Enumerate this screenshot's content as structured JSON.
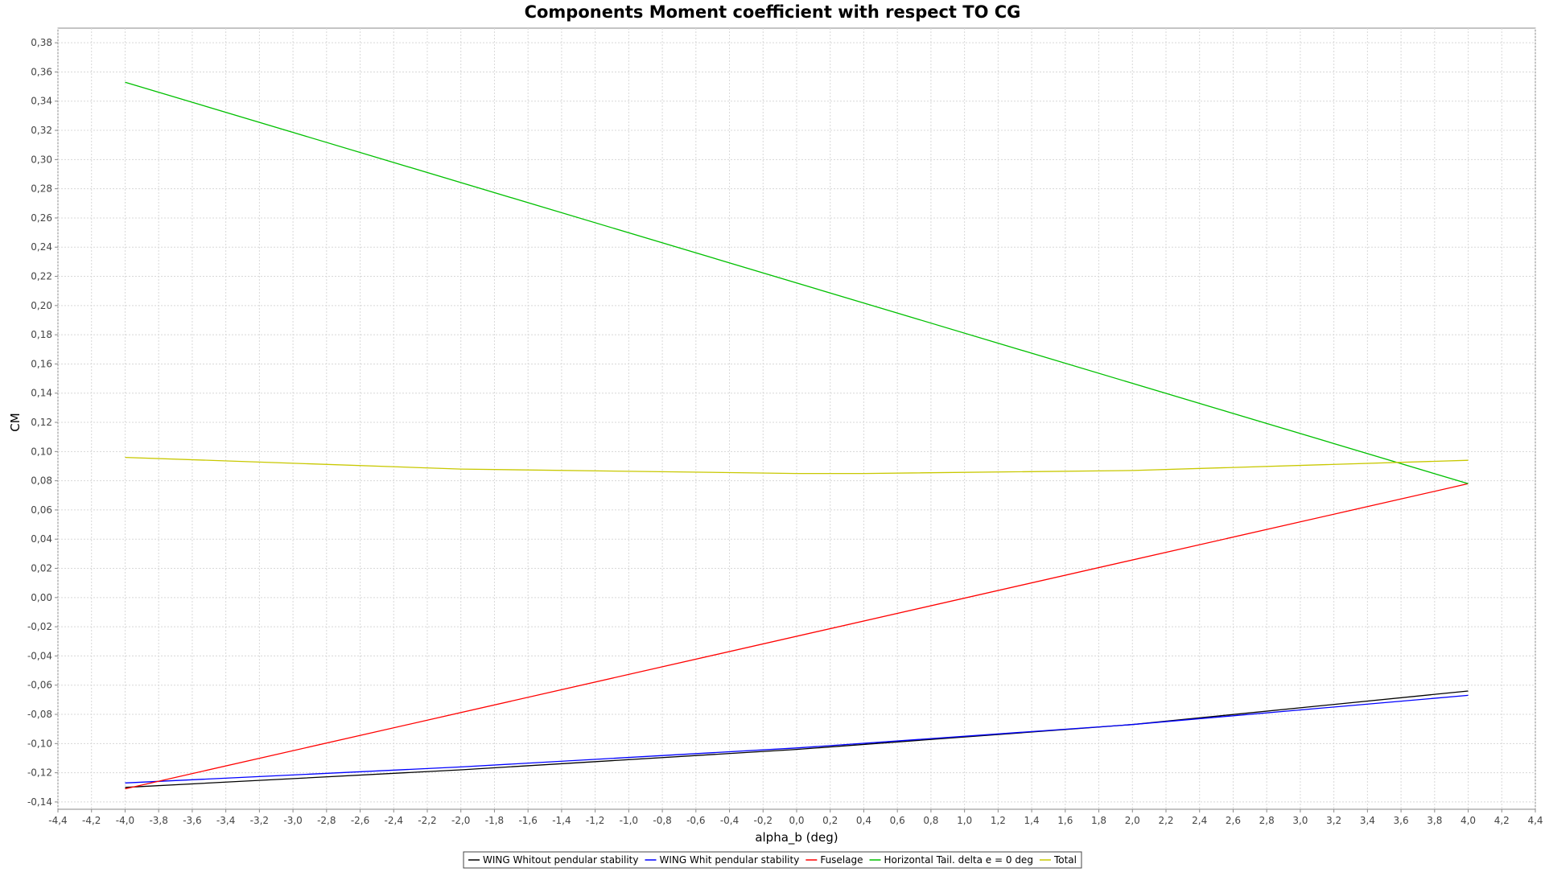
{
  "chart_data": {
    "type": "line",
    "title": "Components Moment coefficient with respect TO CG",
    "xlabel": "alpha_b (deg)",
    "ylabel": "CM",
    "xlim": [
      -4.4,
      4.4
    ],
    "ylim": [
      -0.145,
      0.39
    ],
    "x_tick_labels": [
      "-4,4",
      "-4,2",
      "-4,0",
      "-3,8",
      "-3,6",
      "-3,4",
      "-3,2",
      "-3,0",
      "-2,8",
      "-2,6",
      "-2,4",
      "-2,2",
      "-2,0",
      "-1,8",
      "-1,6",
      "-1,4",
      "-1,2",
      "-1,0",
      "-0,8",
      "-0,6",
      "-0,4",
      "-0,2",
      "0,0",
      "0,2",
      "0,4",
      "0,6",
      "0,8",
      "1,0",
      "1,2",
      "1,4",
      "1,6",
      "1,8",
      "2,0",
      "2,2",
      "2,4",
      "2,6",
      "2,8",
      "3,0",
      "3,2",
      "3,4",
      "3,6",
      "3,8",
      "4,0",
      "4,2",
      "4,4"
    ],
    "y_tick_labels": [
      "-0,14",
      "-0,12",
      "-0,10",
      "-0,08",
      "-0,06",
      "-0,04",
      "-0,02",
      "0,00",
      "0,02",
      "0,04",
      "0,06",
      "0,08",
      "0,10",
      "0,12",
      "0,14",
      "0,16",
      "0,18",
      "0,20",
      "0,22",
      "0,24",
      "0,26",
      "0,28",
      "0,30",
      "0,32",
      "0,34",
      "0,36",
      "0,38"
    ],
    "grid": true,
    "legend_position": "bottom-center",
    "series": [
      {
        "name": "WING Whitout pendular stability",
        "color": "#000000",
        "x": [
          -4.0,
          -2.0,
          0.0,
          2.0,
          4.0
        ],
        "y": [
          -0.13,
          -0.118,
          -0.104,
          -0.087,
          -0.064
        ]
      },
      {
        "name": "WING Whit pendular stability",
        "color": "#0000ff",
        "x": [
          -4.0,
          -2.0,
          0.0,
          2.0,
          4.0
        ],
        "y": [
          -0.127,
          -0.116,
          -0.103,
          -0.087,
          -0.067
        ]
      },
      {
        "name": "Fuselage",
        "color": "#ff0000",
        "x": [
          -4.0,
          4.0
        ],
        "y": [
          -0.131,
          0.078
        ]
      },
      {
        "name": "Horizontal Tail. delta e = 0 deg",
        "color": "#00c000",
        "x": [
          -4.0,
          4.0
        ],
        "y": [
          0.353,
          0.078
        ]
      },
      {
        "name": "Total",
        "color": "#c8c800",
        "x": [
          -4.0,
          -2.0,
          0.0,
          0.4,
          2.0,
          4.0
        ],
        "y": [
          0.096,
          0.088,
          0.085,
          0.085,
          0.087,
          0.094
        ]
      }
    ]
  }
}
